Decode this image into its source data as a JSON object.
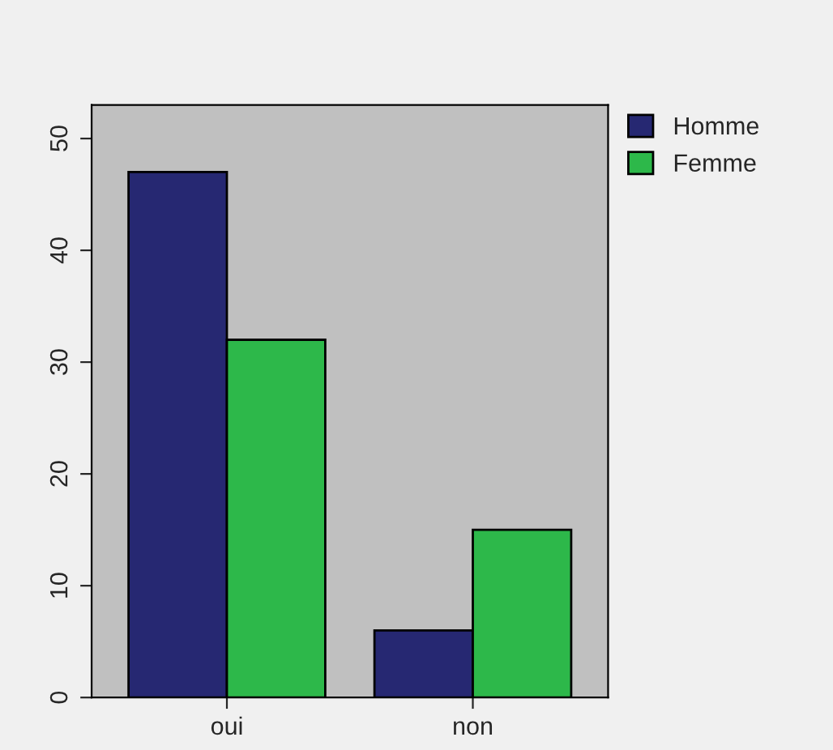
{
  "chart_data": {
    "type": "bar",
    "categories": [
      "oui",
      "non"
    ],
    "series": [
      {
        "name": "Homme",
        "color": "#262872",
        "values": [
          47,
          6
        ]
      },
      {
        "name": "Femme",
        "color": "#2db84a",
        "values": [
          32,
          15
        ]
      }
    ],
    "ylim": [
      0,
      53
    ],
    "yticks": [
      0,
      10,
      20,
      30,
      40,
      50
    ],
    "grid": false,
    "legend": "top right"
  }
}
